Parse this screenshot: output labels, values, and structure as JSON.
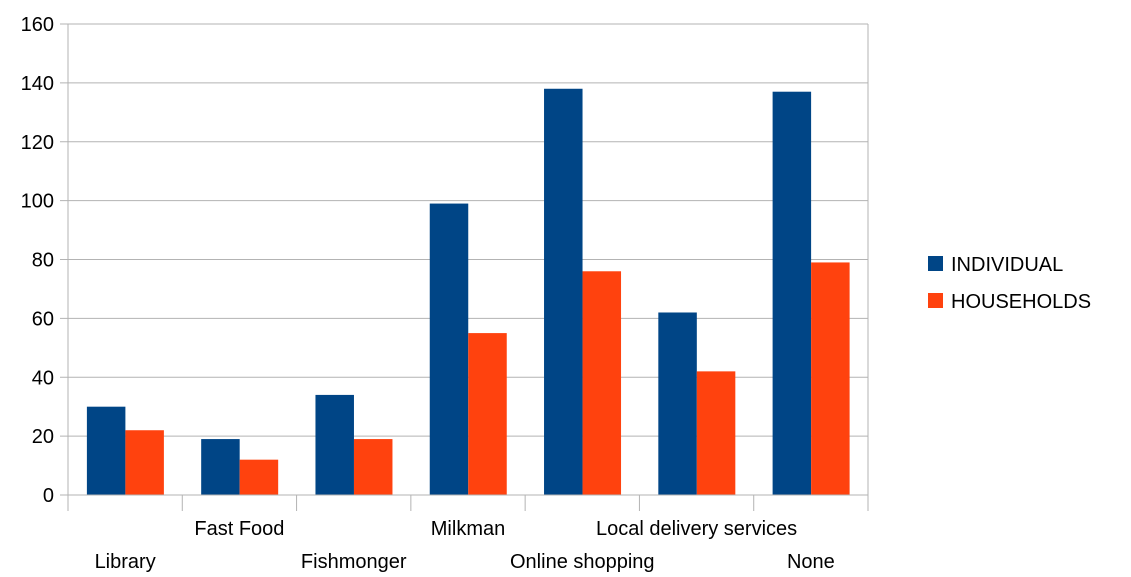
{
  "chart_data": {
    "type": "bar",
    "categories": [
      "Library",
      "Fast Food",
      "Fishmonger",
      "Milkman",
      "Online shopping",
      "Local delivery services",
      "None"
    ],
    "series": [
      {
        "name": "INDIVIDUAL",
        "color": "#004586",
        "values": [
          30,
          19,
          34,
          99,
          138,
          62,
          137
        ]
      },
      {
        "name": "HOUSEHOLDS",
        "color": "#ff420e",
        "values": [
          22,
          12,
          19,
          55,
          76,
          42,
          79
        ]
      }
    ],
    "ylim": [
      0,
      160
    ],
    "yticks": [
      0,
      20,
      40,
      60,
      80,
      100,
      120,
      140,
      160
    ],
    "grid": true,
    "legend_position": "right"
  }
}
